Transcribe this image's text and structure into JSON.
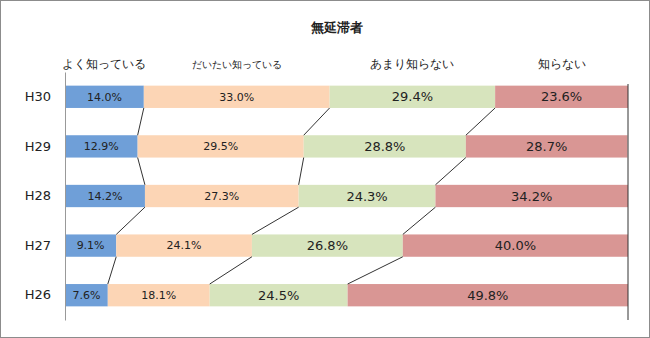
{
  "chart_data": {
    "type": "bar",
    "title": "無延滞者",
    "orientation": "horizontal",
    "stacked": true,
    "data_labels": true,
    "tick_labels": "y",
    "xlim": [
      0,
      100
    ],
    "categories": [
      "H30",
      "H29",
      "H28",
      "H27",
      "H26"
    ],
    "series": [
      {
        "name": "よく知っている",
        "color": "#6f9fd8",
        "values": [
          14.0,
          12.9,
          14.2,
          9.1,
          7.6
        ],
        "value_labels": [
          "14.0%",
          "12.9%",
          "14.2%",
          "9.1%",
          "7.6%"
        ]
      },
      {
        "name": "だいたい知っている",
        "color": "#fcd5b5",
        "values": [
          33.0,
          29.5,
          27.3,
          24.1,
          18.1
        ],
        "value_labels": [
          "33.0%",
          "29.5%",
          "27.3%",
          "24.1%",
          "18.1%"
        ]
      },
      {
        "name": "あまり知らない",
        "color": "#d7e4bd",
        "values": [
          29.4,
          28.8,
          24.3,
          26.8,
          24.5
        ],
        "value_labels": [
          "29.4%",
          "28.8%",
          "24.3%",
          "26.8%",
          "24.5%"
        ]
      },
      {
        "name": "知らない",
        "color": "#d99694",
        "values": [
          23.6,
          28.7,
          34.2,
          40.0,
          49.8
        ],
        "value_labels": [
          "23.6%",
          "28.7%",
          "34.2%",
          "40.0%",
          "49.8%"
        ]
      }
    ]
  }
}
